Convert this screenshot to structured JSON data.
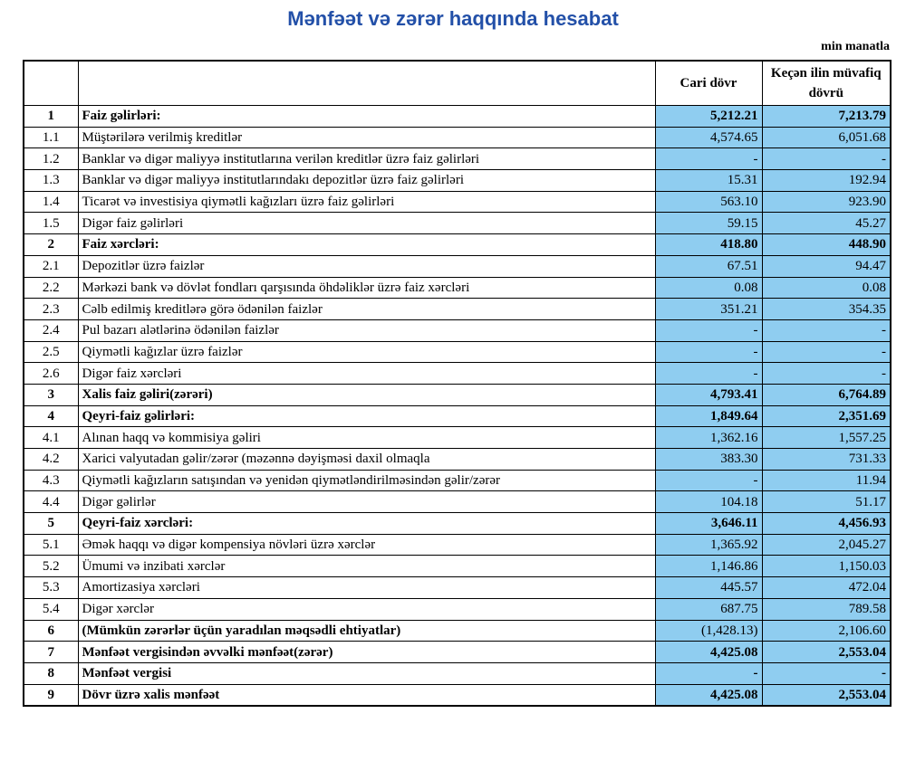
{
  "header": {
    "title": "Mənfəət və zərər haqqında hesabat",
    "unit": "min manatla"
  },
  "table": {
    "columns": [
      "Cari dövr",
      "Keçən ilin müvafiq dövrü"
    ],
    "rows": [
      [
        "1",
        "Faiz gəlirləri:",
        "5,212.21",
        "7,213.79"
      ],
      [
        "1.1",
        "Müştərilərə verilmiş kreditlər",
        "4,574.65",
        "6,051.68"
      ],
      [
        "1.2",
        "Banklar və digər maliyyə institutlarına verilən kreditlər üzrə faiz gəlirləri",
        "-",
        "-"
      ],
      [
        "1.3",
        "Banklar və digər maliyyə institutlarındakı depozitlər üzrə faiz gəlirləri",
        "15.31",
        "192.94"
      ],
      [
        "1.4",
        "Ticarət və investisiya qiymətli kağızları üzrə faiz gəlirləri",
        "563.10",
        "923.90"
      ],
      [
        "1.5",
        "Digər faiz gəlirləri",
        "59.15",
        "45.27"
      ],
      [
        "2",
        "Faiz xərcləri:",
        "418.80",
        "448.90"
      ],
      [
        "2.1",
        "Depozitlər üzrə faizlər",
        "67.51",
        "94.47"
      ],
      [
        "2.2",
        "Mərkəzi bank və dövlət fondları qarşısında öhdəliklər üzrə faiz xərcləri",
        "0.08",
        "0.08"
      ],
      [
        "2.3",
        "Cəlb edilmiş kreditlərə görə ödənilən faizlər",
        "351.21",
        "354.35"
      ],
      [
        "2.4",
        "Pul bazarı alətlərinə ödənilən faizlər",
        "-",
        "-"
      ],
      [
        "2.5",
        "Qiymətli kağızlar üzrə faizlər",
        "-",
        "-"
      ],
      [
        "2.6",
        "Digər faiz xərcləri",
        "-",
        "-"
      ],
      [
        "3",
        "Xalis faiz gəliri(zərəri)",
        "4,793.41",
        "6,764.89"
      ],
      [
        "4",
        "Qeyri-faiz gəlirləri:",
        "1,849.64",
        "2,351.69"
      ],
      [
        "4.1",
        "Alınan haqq və kommisiya gəliri",
        "1,362.16",
        "1,557.25"
      ],
      [
        "4.2",
        "Xarici valyutadan gəlir/zərər (məzənnə dəyişməsi daxil olmaqla",
        "383.30",
        "731.33"
      ],
      [
        "4.3",
        "Qiymətli kağızların satışından və yenidən qiymətləndirilməsindən gəlir/zərər",
        "-",
        "11.94"
      ],
      [
        "4.4",
        "Digər gəlirlər",
        "104.18",
        "51.17"
      ],
      [
        "5",
        "Qeyri-faiz xərcləri:",
        "3,646.11",
        "4,456.93"
      ],
      [
        "5.1",
        "Əmək haqqı və digər kompensiya növləri üzrə xərclər",
        "1,365.92",
        "2,045.27"
      ],
      [
        "5.2",
        "Ümumi və inzibati xərclər",
        "1,146.86",
        "1,150.03"
      ],
      [
        "5.3",
        "Amortizasiya xərcləri",
        "445.57",
        "472.04"
      ],
      [
        "5.4",
        "Digər xərclər",
        "687.75",
        "789.58"
      ],
      [
        "6",
        "(Mümkün zərərlər üçün yaradılan məqsədli ehtiyatlar)",
        "(1,428.13)",
        "2,106.60"
      ],
      [
        "7",
        "Mənfəət vergisindən əvvəlki mənfəət(zərər)",
        "4,425.08",
        "2,553.04"
      ],
      [
        "8",
        "Mənfəət vergisi",
        "-",
        "-"
      ],
      [
        "9",
        "Dövr üzrə xalis mənfəət",
        "4,425.08",
        "2,553.04"
      ]
    ]
  }
}
